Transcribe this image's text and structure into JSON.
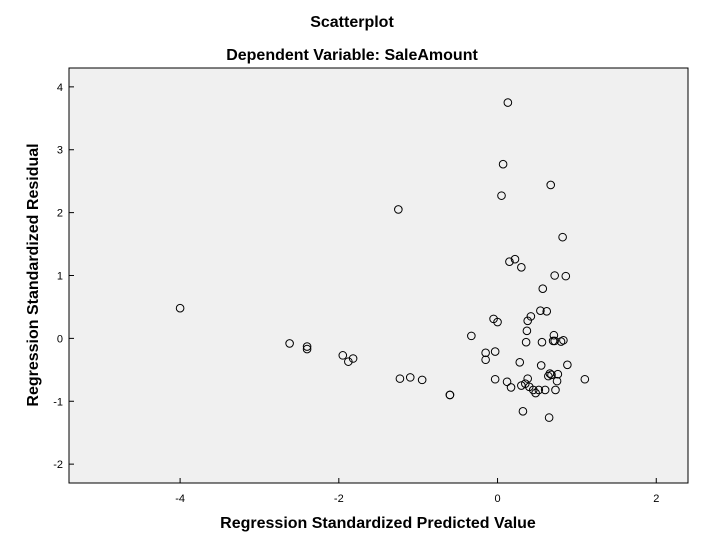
{
  "chart_data": {
    "type": "scatter",
    "title": "Scatterplot",
    "subtitle": "Dependent Variable: SaleAmount",
    "xlabel": "Regression Standardized Predicted Value",
    "ylabel": "Regression Standardized Residual",
    "xlim": [
      -5.4,
      2.4
    ],
    "ylim": [
      -2.3,
      4.3
    ],
    "xticks": [
      -4,
      -2,
      0,
      2
    ],
    "yticks": [
      -2,
      -1,
      0,
      1,
      2,
      3,
      4
    ],
    "grid": false,
    "points": [
      [
        -4.0,
        0.48
      ],
      [
        -2.62,
        -0.08
      ],
      [
        -2.4,
        -0.13
      ],
      [
        -2.4,
        -0.17
      ],
      [
        -1.95,
        -0.27
      ],
      [
        -1.88,
        -0.37
      ],
      [
        -1.82,
        -0.32
      ],
      [
        -1.25,
        2.05
      ],
      [
        -1.23,
        -0.64
      ],
      [
        -1.1,
        -0.62
      ],
      [
        -0.95,
        -0.66
      ],
      [
        -0.6,
        -0.9
      ],
      [
        -0.6,
        -0.9
      ],
      [
        -0.33,
        0.04
      ],
      [
        -0.15,
        -0.23
      ],
      [
        -0.15,
        -0.34
      ],
      [
        -0.05,
        0.31
      ],
      [
        -0.03,
        -0.21
      ],
      [
        -0.03,
        -0.65
      ],
      [
        0.0,
        0.26
      ],
      [
        0.05,
        2.27
      ],
      [
        0.07,
        2.77
      ],
      [
        0.12,
        -0.69
      ],
      [
        0.13,
        3.75
      ],
      [
        0.15,
        1.22
      ],
      [
        0.17,
        -0.78
      ],
      [
        0.22,
        1.26
      ],
      [
        0.28,
        -0.38
      ],
      [
        0.3,
        1.13
      ],
      [
        0.3,
        -0.75
      ],
      [
        0.32,
        -1.16
      ],
      [
        0.35,
        -0.72
      ],
      [
        0.36,
        -0.06
      ],
      [
        0.37,
        0.12
      ],
      [
        0.38,
        0.28
      ],
      [
        0.38,
        -0.64
      ],
      [
        0.4,
        -0.77
      ],
      [
        0.42,
        0.35
      ],
      [
        0.45,
        -0.82
      ],
      [
        0.48,
        -0.87
      ],
      [
        0.52,
        -0.82
      ],
      [
        0.54,
        0.44
      ],
      [
        0.55,
        -0.43
      ],
      [
        0.56,
        -0.06
      ],
      [
        0.57,
        0.79
      ],
      [
        0.6,
        -0.82
      ],
      [
        0.62,
        0.43
      ],
      [
        0.64,
        -0.6
      ],
      [
        0.65,
        -1.26
      ],
      [
        0.66,
        -0.56
      ],
      [
        0.67,
        2.44
      ],
      [
        0.68,
        -0.58
      ],
      [
        0.7,
        -0.04
      ],
      [
        0.71,
        0.05
      ],
      [
        0.72,
        -0.04
      ],
      [
        0.72,
        1.0
      ],
      [
        0.73,
        -0.82
      ],
      [
        0.75,
        -0.68
      ],
      [
        0.76,
        -0.57
      ],
      [
        0.8,
        -0.05
      ],
      [
        0.82,
        1.61
      ],
      [
        0.83,
        -0.03
      ],
      [
        0.86,
        0.99
      ],
      [
        0.88,
        -0.42
      ],
      [
        1.1,
        -0.65
      ]
    ]
  }
}
